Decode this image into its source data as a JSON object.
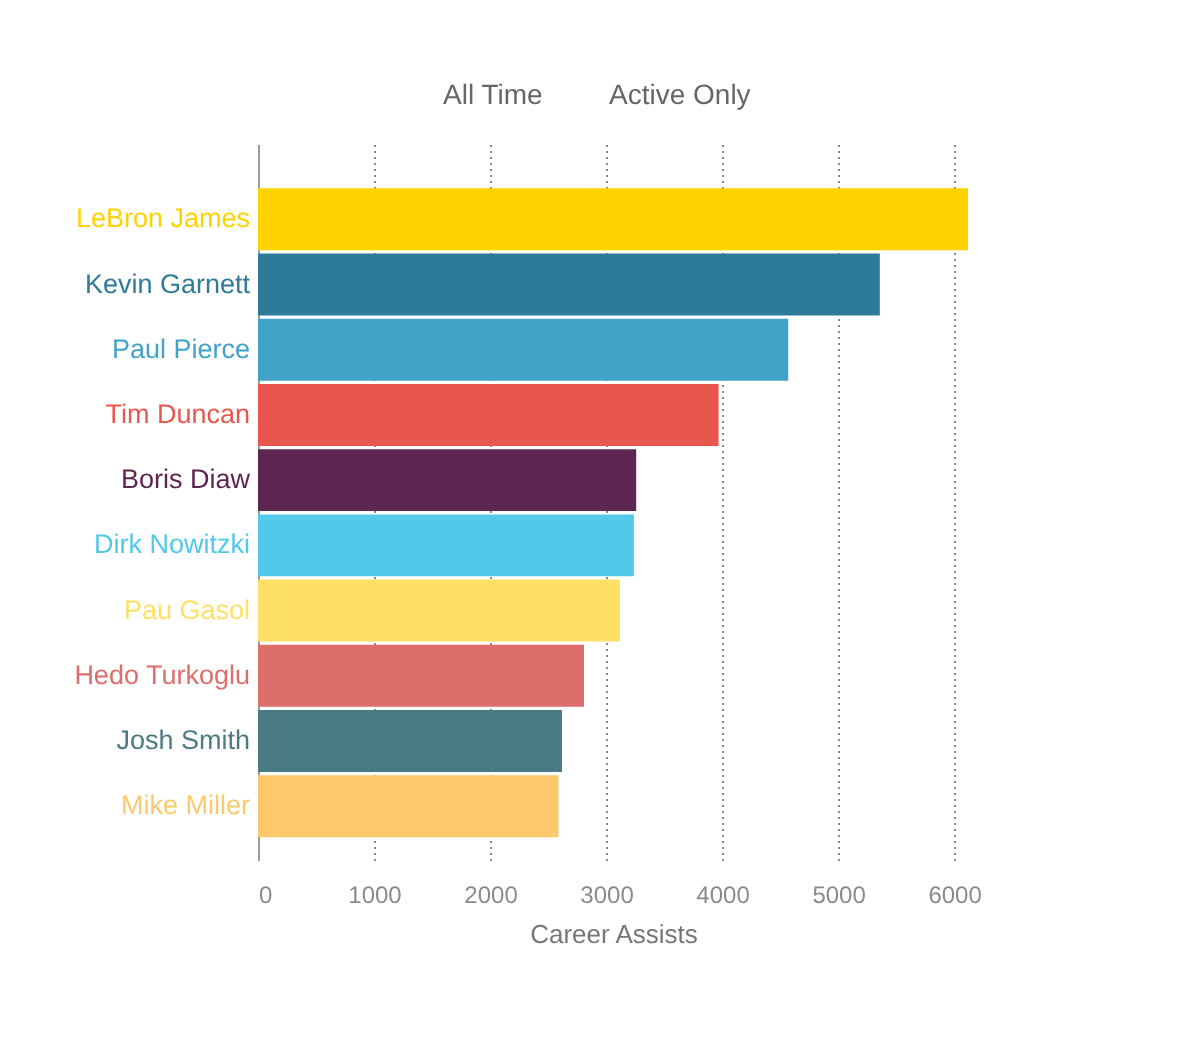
{
  "chart_data": {
    "type": "bar",
    "orientation": "horizontal",
    "categories": [
      "LeBron James",
      "Kevin Garnett",
      "Paul Pierce",
      "Tim Duncan",
      "Boris Diaw",
      "Dirk Nowitzki",
      "Pau Gasol",
      "Hedo Turkoglu",
      "Josh Smith",
      "Mike Miller"
    ],
    "values": [
      6120,
      5360,
      4570,
      3970,
      3260,
      3240,
      3120,
      2810,
      2620,
      2590
    ],
    "colors": [
      "#ffd200",
      "#2e7b99",
      "#41a3c8",
      "#e8574e",
      "#5c2650",
      "#52c9e8",
      "#ffe066",
      "#de6e6b",
      "#4a7a84",
      "#fdc96a"
    ],
    "xlabel": "Career Assists",
    "xlim": [
      0,
      6120
    ],
    "xticks": [
      0,
      1000,
      2000,
      3000,
      4000,
      5000,
      6000
    ],
    "grid": "x",
    "annotations": [
      "All Time",
      "Active Only"
    ]
  }
}
